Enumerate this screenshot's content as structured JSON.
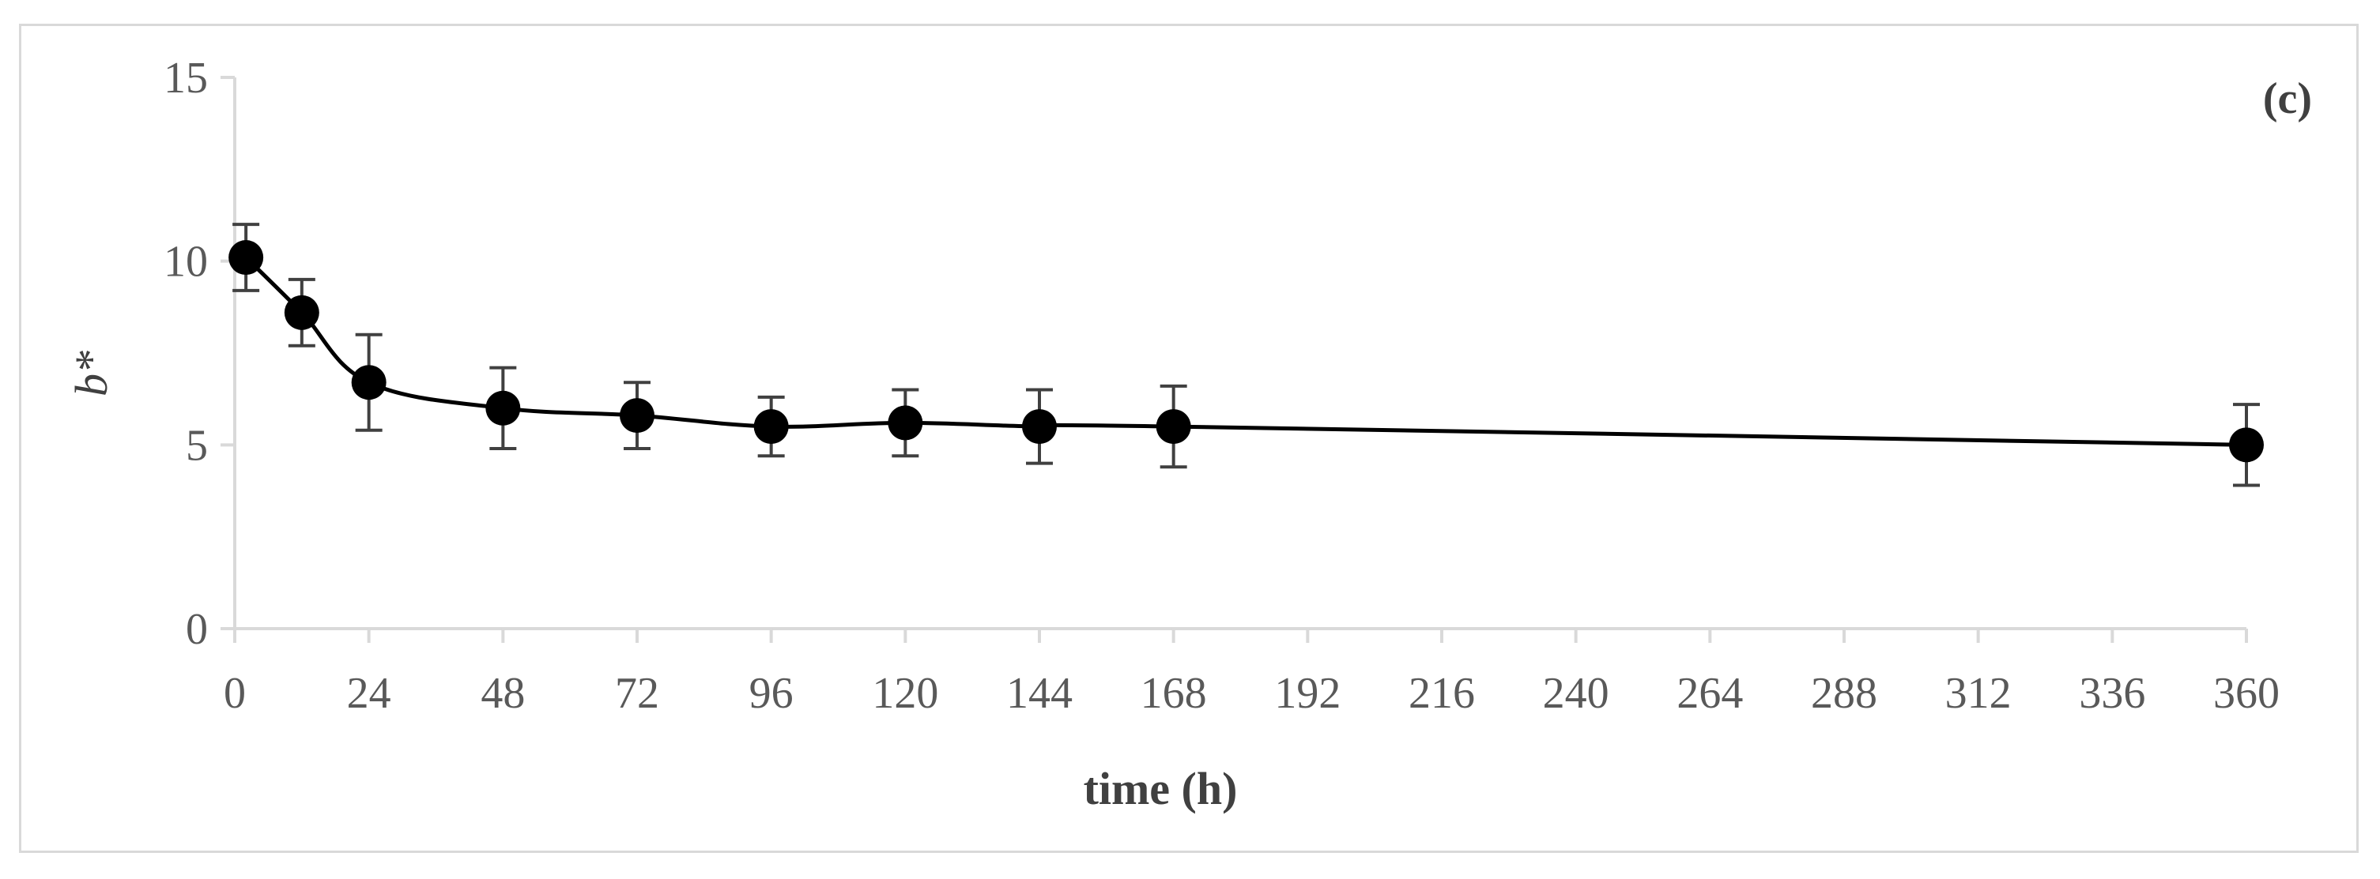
{
  "chart_data": {
    "type": "line",
    "title": "",
    "panel_label": "(c)",
    "xlabel": "time (h)",
    "ylabel": "b*",
    "xlim": [
      0,
      360
    ],
    "ylim": [
      0,
      15
    ],
    "x_ticks": [
      0,
      24,
      48,
      72,
      96,
      120,
      144,
      168,
      192,
      216,
      240,
      264,
      288,
      312,
      336,
      360
    ],
    "y_ticks": [
      0,
      5,
      10,
      15
    ],
    "grid": false,
    "legend": "none",
    "series": [
      {
        "color": "#000000",
        "marker": "circle",
        "smooth": true,
        "points": [
          {
            "x": 2,
            "y": 10.1,
            "err": 0.9
          },
          {
            "x": 12,
            "y": 8.6,
            "err": 0.9
          },
          {
            "x": 24,
            "y": 6.7,
            "err": 1.3
          },
          {
            "x": 48,
            "y": 6.0,
            "err": 1.1
          },
          {
            "x": 72,
            "y": 5.8,
            "err": 0.9
          },
          {
            "x": 96,
            "y": 5.5,
            "err": 0.8
          },
          {
            "x": 120,
            "y": 5.6,
            "err": 0.9
          },
          {
            "x": 144,
            "y": 5.5,
            "err": 1.0
          },
          {
            "x": 168,
            "y": 5.5,
            "err": 1.1
          },
          {
            "x": 360,
            "y": 5.0,
            "err": 1.1
          }
        ]
      }
    ]
  }
}
